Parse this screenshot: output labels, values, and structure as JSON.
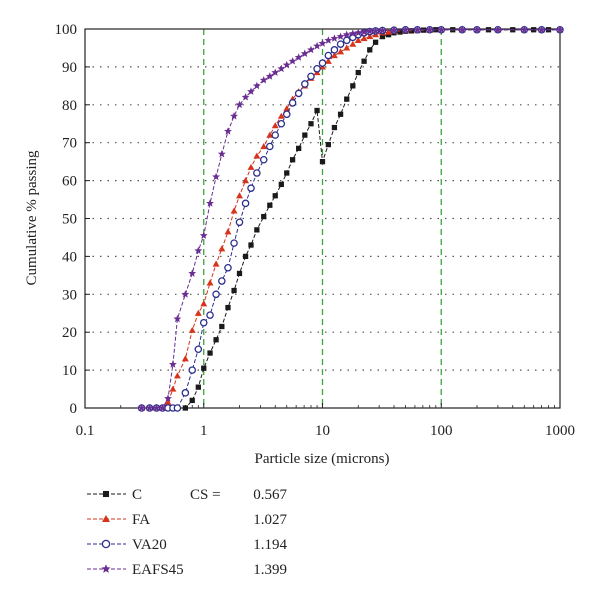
{
  "chart_data": {
    "type": "line",
    "title": "",
    "xlabel": "Particle size (microns)",
    "ylabel": "Cumulative % passing",
    "xscale": "log",
    "xlim": [
      0.1,
      1000
    ],
    "ylim": [
      0,
      100
    ],
    "x_ticks": [
      "0.1",
      "1",
      "10",
      "100",
      "1000"
    ],
    "y_ticks": [
      "0",
      "10",
      "20",
      "30",
      "40",
      "50",
      "60",
      "70",
      "80",
      "90",
      "100"
    ],
    "grid": "horizontal dotted at every 10%; vertical dashed green at 1, 10, 100",
    "legend_position": "below plot",
    "legend_header": "CS =",
    "series": [
      {
        "name": "C",
        "cs_value": "0.567",
        "color": "#1a1a1a",
        "marker": "square",
        "x": [
          0.3,
          0.35,
          0.4,
          0.45,
          0.5,
          0.55,
          0.6,
          0.7,
          0.8,
          0.9,
          1.0,
          1.13,
          1.27,
          1.42,
          1.6,
          1.8,
          2.0,
          2.25,
          2.5,
          2.8,
          3.2,
          3.6,
          4.0,
          4.5,
          5.0,
          5.6,
          6.3,
          7.1,
          8.0,
          9.0,
          10,
          11.2,
          12.6,
          14.2,
          16,
          18,
          20,
          22.4,
          25,
          28,
          32,
          36,
          40,
          45,
          50,
          56,
          63,
          71,
          80,
          90,
          100,
          125,
          150,
          200,
          250,
          300,
          400,
          500,
          600,
          700,
          800,
          1000
        ],
        "y": [
          0,
          0,
          0,
          0,
          0,
          0,
          0,
          0,
          2,
          5.5,
          10.5,
          14.5,
          18,
          21.5,
          26.5,
          31,
          35.5,
          40,
          43,
          47,
          50.5,
          53.5,
          56,
          59,
          62,
          65.5,
          68.5,
          72,
          75,
          78.5,
          65,
          69.5,
          74,
          77.5,
          81.5,
          85,
          88.5,
          91.5,
          94.5,
          96.5,
          98,
          98.5,
          99,
          99.2,
          99.4,
          99.5,
          99.6,
          99.7,
          99.7,
          99.8,
          99.8,
          99.8,
          99.8,
          99.8,
          99.8,
          99.8,
          99.8,
          99.8,
          99.8,
          99.8,
          99.8,
          99.8
        ]
      },
      {
        "name": "FA",
        "cs_value": "1.027",
        "color": "#d6341c",
        "marker": "triangle",
        "x": [
          0.3,
          0.35,
          0.4,
          0.45,
          0.5,
          0.55,
          0.6,
          0.7,
          0.8,
          0.9,
          1.0,
          1.13,
          1.27,
          1.42,
          1.6,
          1.8,
          2.0,
          2.25,
          2.5,
          2.8,
          3.2,
          3.6,
          4.0,
          4.5,
          5.0,
          5.6,
          6.3,
          7.1,
          8.0,
          9.0,
          10,
          11.2,
          12.6,
          14.2,
          16,
          18,
          20,
          22.4,
          25,
          28,
          32,
          36,
          40,
          50,
          63,
          80,
          100,
          150,
          200,
          300,
          500,
          700,
          1000
        ],
        "y": [
          0,
          0,
          0,
          0,
          1.5,
          5,
          8.5,
          13,
          20.5,
          25,
          27.5,
          33,
          38,
          42,
          46.5,
          52,
          56,
          60,
          63.5,
          66.5,
          69,
          72,
          74.5,
          77,
          79,
          81.5,
          83.5,
          85,
          87,
          88.5,
          90,
          91.5,
          93,
          94,
          95,
          96,
          97,
          97.5,
          98,
          98.5,
          99,
          99.2,
          99.4,
          99.5,
          99.6,
          99.7,
          99.8,
          99.8,
          99.8,
          99.8,
          99.8,
          99.8,
          99.8
        ]
      },
      {
        "name": "VA20",
        "cs_value": "1.194",
        "color": "#2b2e8c",
        "marker": "circle",
        "x": [
          0.3,
          0.35,
          0.4,
          0.45,
          0.5,
          0.55,
          0.6,
          0.7,
          0.8,
          0.9,
          1.0,
          1.13,
          1.27,
          1.42,
          1.6,
          1.8,
          2.0,
          2.25,
          2.5,
          2.8,
          3.2,
          3.6,
          4.0,
          4.5,
          5.0,
          5.6,
          6.3,
          7.1,
          8.0,
          9.0,
          10,
          11.2,
          12.6,
          14.2,
          16,
          18,
          20,
          22.4,
          25,
          28,
          32,
          40,
          50,
          63,
          80,
          100,
          150,
          200,
          300,
          500,
          700,
          1000
        ],
        "y": [
          0,
          0,
          0,
          0,
          0,
          0,
          0,
          4,
          10,
          15.5,
          22.5,
          24.5,
          30,
          33.5,
          37,
          43.5,
          49,
          54,
          58,
          62,
          65.5,
          69,
          72,
          75,
          77.5,
          80.5,
          83,
          85.5,
          87.5,
          89.5,
          91,
          93,
          94.5,
          96,
          97,
          97.8,
          98.5,
          99,
          99.3,
          99.5,
          99.6,
          99.7,
          99.8,
          99.8,
          99.8,
          99.8,
          99.8,
          99.8,
          99.8,
          99.8,
          99.8,
          99.8
        ]
      },
      {
        "name": "EAFS45",
        "cs_value": "1.399",
        "color": "#6a2d91",
        "marker": "star",
        "x": [
          0.3,
          0.35,
          0.4,
          0.45,
          0.5,
          0.55,
          0.6,
          0.7,
          0.8,
          0.9,
          1.0,
          1.13,
          1.27,
          1.42,
          1.6,
          1.8,
          2.0,
          2.25,
          2.5,
          2.8,
          3.2,
          3.6,
          4.0,
          4.5,
          5.0,
          5.6,
          6.3,
          7.1,
          8.0,
          9.0,
          10,
          11.2,
          12.6,
          14.2,
          16,
          18,
          20,
          22.4,
          25,
          28,
          32,
          40,
          50,
          63,
          80,
          100,
          150,
          200,
          300,
          500,
          700,
          1000
        ],
        "y": [
          0,
          0,
          0,
          0,
          2.5,
          11.5,
          23.5,
          30,
          35.5,
          41.5,
          45.5,
          54,
          61,
          67,
          73,
          77,
          80,
          82,
          83.5,
          85,
          86.5,
          87.5,
          88.5,
          89.5,
          90.5,
          91.5,
          92.5,
          93.5,
          94.5,
          95.5,
          96.2,
          97,
          97.5,
          98,
          98.5,
          98.8,
          99,
          99.2,
          99.4,
          99.5,
          99.6,
          99.7,
          99.8,
          99.8,
          99.8,
          99.8,
          99.8,
          99.8,
          99.8,
          99.8,
          99.8,
          99.8
        ]
      }
    ]
  }
}
